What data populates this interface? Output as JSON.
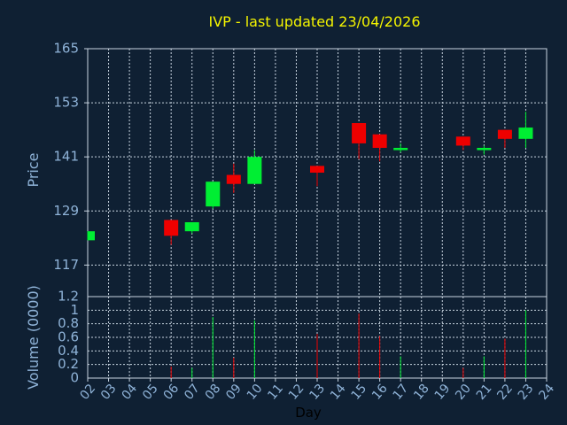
{
  "chart_data": {
    "type": "candlestick",
    "title": "IVP - last updated 23/04/2026",
    "price_ylabel": "Price",
    "volume_ylabel": "Volume (0000)",
    "xlabel": "Day",
    "price_ylim": [
      110,
      165
    ],
    "price_ticks": [
      "165",
      "153",
      "141",
      "129",
      "117"
    ],
    "price_tick_values": [
      165,
      153,
      141,
      129,
      117
    ],
    "volume_ylim": [
      0,
      1.2
    ],
    "volume_ticks": [
      "1.2",
      "1",
      "0.8",
      "0.6",
      "0.4",
      "0.2",
      "0"
    ],
    "volume_tick_values": [
      1.2,
      1,
      0.8,
      0.6,
      0.4,
      0.2,
      0
    ],
    "x_ticks": [
      "02",
      "03",
      "04",
      "05",
      "06",
      "07",
      "08",
      "09",
      "10",
      "11",
      "12",
      "13",
      "14",
      "15",
      "16",
      "17",
      "18",
      "19",
      "20",
      "21",
      "22",
      "23",
      "24"
    ],
    "grid": true,
    "candles": [
      {
        "day": "02",
        "open": 122.5,
        "close": 124.5,
        "high": 124.5,
        "low": 122.5,
        "volume": 0
      },
      {
        "day": "06",
        "open": 127.0,
        "close": 123.5,
        "high": 127.0,
        "low": 121.5,
        "volume": 0.17
      },
      {
        "day": "07",
        "open": 124.5,
        "close": 126.5,
        "high": 126.5,
        "low": 124.0,
        "volume": 0.15
      },
      {
        "day": "08",
        "open": 130.0,
        "close": 135.5,
        "high": 135.5,
        "low": 129.5,
        "volume": 0.9
      },
      {
        "day": "09",
        "open": 137.0,
        "close": 135.0,
        "high": 139.5,
        "low": 133.0,
        "volume": 0.3
      },
      {
        "day": "10",
        "open": 135.0,
        "close": 141.0,
        "high": 142.5,
        "low": 135.0,
        "volume": 0.85
      },
      {
        "day": "13",
        "open": 139.0,
        "close": 137.5,
        "high": 139.0,
        "low": 134.5,
        "volume": 0.65
      },
      {
        "day": "15",
        "open": 148.5,
        "close": 144.0,
        "high": 148.5,
        "low": 140.5,
        "volume": 0.95
      },
      {
        "day": "16",
        "open": 146.0,
        "close": 143.0,
        "high": 146.0,
        "low": 140.0,
        "volume": 0.62
      },
      {
        "day": "17",
        "open": 142.5,
        "close": 143.0,
        "high": 144.0,
        "low": 142.0,
        "volume": 0.32
      },
      {
        "day": "20",
        "open": 145.5,
        "close": 143.5,
        "high": 145.5,
        "low": 142.5,
        "volume": 0.15
      },
      {
        "day": "21",
        "open": 142.5,
        "close": 143.0,
        "high": 143.5,
        "low": 141.5,
        "volume": 0.32
      },
      {
        "day": "22",
        "open": 147.0,
        "close": 145.0,
        "high": 147.0,
        "low": 143.0,
        "volume": 0.58
      },
      {
        "day": "23",
        "open": 145.0,
        "close": 147.5,
        "high": 151.0,
        "low": 143.0,
        "volume": 1.0
      }
    ],
    "colors": {
      "up": "#00ee33",
      "down": "#ee0000",
      "background": "#0f2033",
      "grid": "#c8d4e0",
      "text": "#8fb3d8",
      "title": "#f4f400"
    }
  }
}
